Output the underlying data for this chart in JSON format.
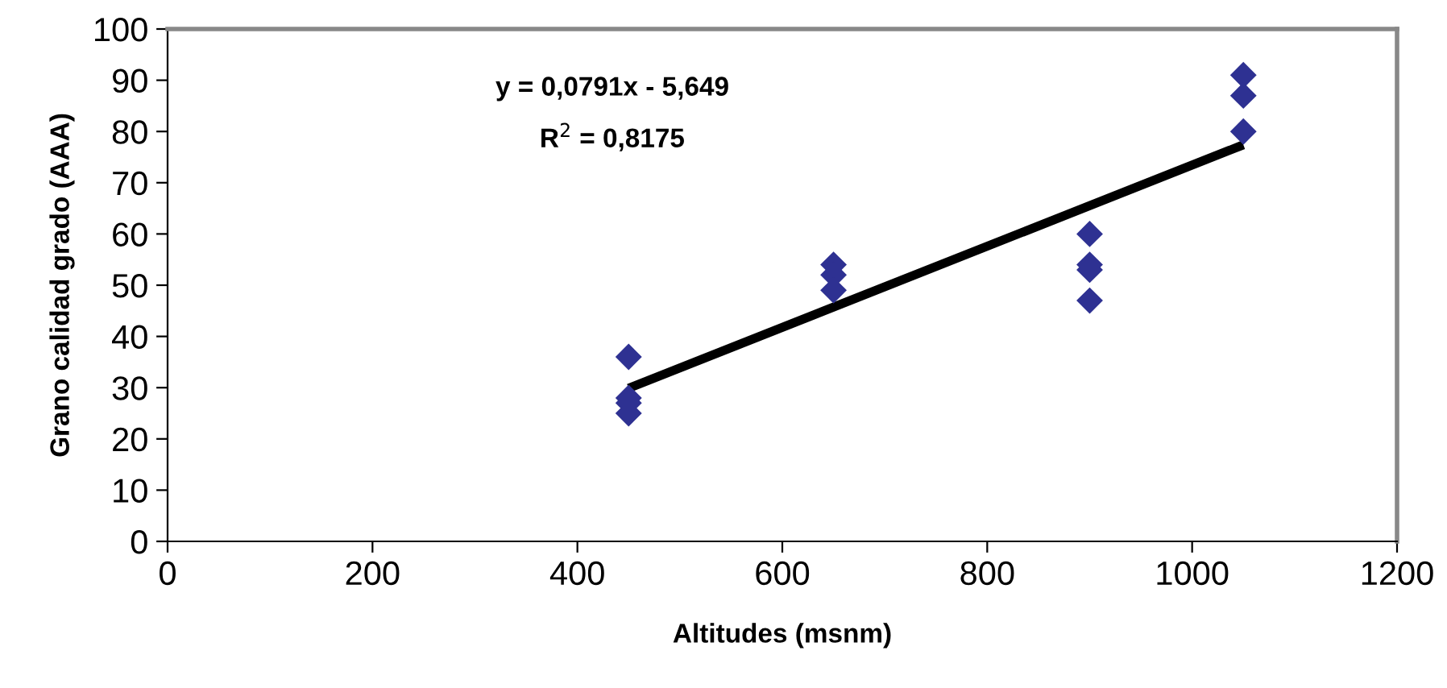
{
  "chart_data": {
    "type": "scatter",
    "xlabel": "Altitudes (msnm)",
    "ylabel": "Grano calidad grado (AAA)",
    "xlim": [
      0,
      1200
    ],
    "xticks": [
      0,
      200,
      400,
      600,
      800,
      1000,
      1200
    ],
    "ylim": [
      0,
      100
    ],
    "yticks": [
      0,
      10,
      20,
      30,
      40,
      50,
      60,
      70,
      80,
      90,
      100
    ],
    "grid": false,
    "legend": false,
    "marker": "diamond",
    "annotations": [
      "y = 0,0791x - 5,649",
      "R$^{2}$ = 0,8175"
    ],
    "series": [
      {
        "color": "#2e3192",
        "x": [
          450,
          450,
          450,
          450,
          650,
          650,
          650,
          900,
          900,
          900,
          900,
          1050,
          1050,
          1050
        ],
        "values": [
          36,
          28,
          27,
          25,
          54,
          52,
          49,
          60,
          54,
          53,
          47,
          91,
          87,
          80
        ]
      },
      {
        "type": "line",
        "color": "#000000",
        "x": [
          450,
          1050
        ],
        "values": [
          29.9,
          77.4
        ],
        "marker": "none",
        "line_style": "solid"
      }
    ]
  }
}
